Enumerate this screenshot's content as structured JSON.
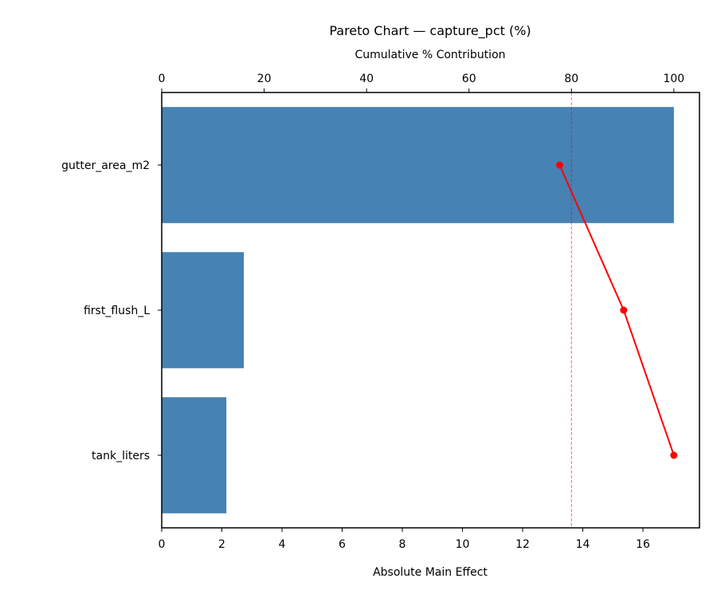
{
  "chart_data": {
    "type": "bar",
    "orientation": "horizontal",
    "title": "Pareto Chart — capture_pct (%)",
    "xlabel": "Absolute Main Effect",
    "ylabel": "",
    "secondary_xlabel": "Cumulative % Contribution",
    "categories": [
      "gutter_area_m2",
      "first_flush_L",
      "tank_liters"
    ],
    "series": [
      {
        "name": "Absolute Main Effect",
        "type": "bar",
        "color": "#4682b4",
        "values": [
          17.03,
          2.73,
          2.15
        ]
      },
      {
        "name": "Cumulative %",
        "type": "line",
        "color": "#ff0000",
        "values": [
          77.7,
          90.2,
          100.0
        ]
      }
    ],
    "xlim": [
      0,
      17.88
    ],
    "secondary_xlim": [
      0,
      105
    ],
    "xticks": [
      0,
      2,
      4,
      6,
      8,
      10,
      12,
      14,
      16
    ],
    "secondary_xticks": [
      0,
      20,
      40,
      60,
      80,
      100
    ],
    "threshold_line": {
      "axis": "secondary_x",
      "value": 80,
      "color": "#ff0000",
      "style": "dashed"
    },
    "grid": false,
    "legend": null
  }
}
